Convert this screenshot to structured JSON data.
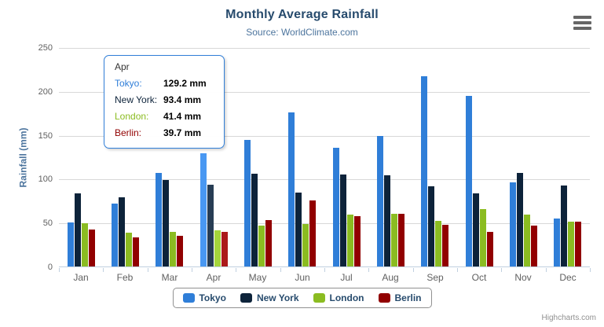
{
  "chart": {
    "title": "Monthly Average Rainfall",
    "subtitle": "Source: WorldClimate.com",
    "y_axis_title": "Rainfall (mm)",
    "credits_label": "Highcharts.com"
  },
  "icons": {
    "export_menu": "hamburger-icon"
  },
  "colors": {
    "title_text": "#274b6d",
    "subtitle_text": "#4d759e",
    "axis_label_text": "#606060",
    "gridline": "#d8d8d8",
    "axis_line": "#c0d0e0",
    "legend_border": "#909090",
    "credits_text": "#909090"
  },
  "chart_data": {
    "type": "bar",
    "orientation": "vertical-columns",
    "title": "Monthly Average Rainfall",
    "subtitle": "Source: WorldClimate.com",
    "xlabel": "",
    "ylabel": "Rainfall (mm)",
    "ylim": [
      0,
      250
    ],
    "y_ticks": [
      0,
      50,
      100,
      150,
      200,
      250
    ],
    "grid": true,
    "legend_position": "bottom",
    "categories": [
      "Jan",
      "Feb",
      "Mar",
      "Apr",
      "May",
      "Jun",
      "Jul",
      "Aug",
      "Sep",
      "Oct",
      "Nov",
      "Dec"
    ],
    "hovered_category": "Apr",
    "series": [
      {
        "name": "Tokyo",
        "color": "#2f7ed8",
        "hover_color": "#4998f2",
        "values": [
          49.9,
          71.5,
          106.4,
          129.2,
          144.0,
          176.0,
          135.6,
          148.5,
          216.4,
          194.1,
          95.6,
          54.4
        ]
      },
      {
        "name": "New York",
        "color": "#0d233a",
        "hover_color": "#273d54",
        "values": [
          83.6,
          78.8,
          98.5,
          93.4,
          106.0,
          84.5,
          105.0,
          104.3,
          91.2,
          83.5,
          106.6,
          92.3
        ]
      },
      {
        "name": "London",
        "color": "#8bbc21",
        "hover_color": "#a5d63b",
        "values": [
          48.9,
          38.8,
          39.3,
          41.4,
          47.0,
          48.3,
          59.0,
          59.6,
          52.4,
          65.2,
          59.3,
          51.2
        ]
      },
      {
        "name": "Berlin",
        "color": "#910000",
        "hover_color": "#ab1a1a",
        "values": [
          42.4,
          33.2,
          34.5,
          39.7,
          52.6,
          75.5,
          57.4,
          60.4,
          47.6,
          39.1,
          46.8,
          51.1
        ]
      }
    ]
  },
  "tooltip": {
    "header": "Apr",
    "border_color": "#2f7ed8",
    "rows": [
      {
        "name": "Tokyo:",
        "value": "129.2 mm",
        "color": "#2f7ed8"
      },
      {
        "name": "New York:",
        "value": "93.4 mm",
        "color": "#0d233a"
      },
      {
        "name": "London:",
        "value": "41.4 mm",
        "color": "#8bbc21"
      },
      {
        "name": "Berlin:",
        "value": "39.7 mm",
        "color": "#910000"
      }
    ]
  },
  "legend": {
    "items": [
      "Tokyo",
      "New York",
      "London",
      "Berlin"
    ]
  }
}
